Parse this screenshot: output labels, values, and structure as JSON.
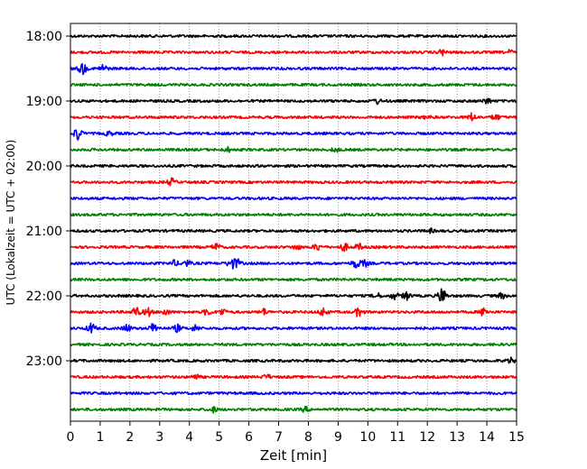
{
  "chart_data": {
    "type": "line",
    "title": "",
    "xlabel": "Zeit  [min]",
    "ylabel": "UTC (Lokalzeit = UTC + 02:00)",
    "xlim": [
      0,
      15
    ],
    "x_ticks": [
      0,
      1,
      2,
      3,
      4,
      5,
      6,
      7,
      8,
      9,
      10,
      11,
      12,
      13,
      14,
      15
    ],
    "grid": "vertical dotted",
    "start_time": "18:00",
    "end_time": "23:45",
    "trace_interval_min": 15,
    "hour_labels": [
      "18:00",
      "19:00",
      "20:00",
      "21:00",
      "22:00",
      "23:00"
    ],
    "trace_colors": [
      "#000000",
      "#ff0000",
      "#0000ff",
      "#008000"
    ],
    "traces": [
      {
        "time": "18:00",
        "color": "#000000",
        "bursts": []
      },
      {
        "time": "18:15",
        "color": "#ff0000",
        "bursts": [
          [
            12.5,
            0.35
          ],
          [
            14.8,
            0.25
          ]
        ]
      },
      {
        "time": "18:30",
        "color": "#0000ff",
        "bursts": [
          [
            0.4,
            0.7
          ],
          [
            1.1,
            0.45
          ]
        ]
      },
      {
        "time": "18:45",
        "color": "#008000",
        "bursts": []
      },
      {
        "time": "19:00",
        "color": "#000000",
        "bursts": [
          [
            10.3,
            0.3
          ],
          [
            14.0,
            0.35
          ]
        ]
      },
      {
        "time": "19:15",
        "color": "#ff0000",
        "bursts": [
          [
            12.0,
            0.2
          ],
          [
            13.5,
            0.45
          ],
          [
            14.3,
            0.35
          ]
        ]
      },
      {
        "time": "19:30",
        "color": "#0000ff",
        "bursts": [
          [
            0.25,
            0.8
          ],
          [
            1.3,
            0.25
          ]
        ]
      },
      {
        "time": "19:45",
        "color": "#008000",
        "bursts": [
          [
            5.3,
            0.25
          ],
          [
            8.9,
            0.25
          ]
        ]
      },
      {
        "time": "20:00",
        "color": "#000000",
        "bursts": []
      },
      {
        "time": "20:15",
        "color": "#ff0000",
        "bursts": [
          [
            3.4,
            0.4
          ]
        ]
      },
      {
        "time": "20:30",
        "color": "#0000ff",
        "bursts": []
      },
      {
        "time": "20:45",
        "color": "#008000",
        "bursts": []
      },
      {
        "time": "21:00",
        "color": "#000000",
        "bursts": [
          [
            12.1,
            0.2
          ]
        ]
      },
      {
        "time": "21:15",
        "color": "#ff0000",
        "bursts": [
          [
            4.9,
            0.45
          ],
          [
            7.6,
            0.3
          ],
          [
            8.3,
            0.4
          ],
          [
            9.2,
            0.45
          ],
          [
            9.7,
            0.35
          ]
        ]
      },
      {
        "time": "21:30",
        "color": "#0000ff",
        "bursts": [
          [
            3.5,
            0.3
          ],
          [
            3.9,
            0.35
          ],
          [
            5.4,
            0.55
          ],
          [
            5.6,
            0.45
          ],
          [
            9.6,
            0.55
          ],
          [
            9.9,
            0.35
          ]
        ]
      },
      {
        "time": "21:45",
        "color": "#008000",
        "bursts": []
      },
      {
        "time": "22:00",
        "color": "#000000",
        "bursts": [
          [
            10.3,
            0.3
          ],
          [
            10.9,
            0.4
          ],
          [
            11.3,
            0.45
          ],
          [
            12.5,
            1.0
          ],
          [
            14.5,
            0.3
          ]
        ]
      },
      {
        "time": "22:15",
        "color": "#ff0000",
        "bursts": [
          [
            2.2,
            0.6
          ],
          [
            2.6,
            0.5
          ],
          [
            3.2,
            0.35
          ],
          [
            4.6,
            0.35
          ],
          [
            5.1,
            0.4
          ],
          [
            6.5,
            0.35
          ],
          [
            8.5,
            0.5
          ],
          [
            9.7,
            0.55
          ],
          [
            13.9,
            0.5
          ]
        ]
      },
      {
        "time": "22:30",
        "color": "#0000ff",
        "bursts": [
          [
            0.7,
            0.6
          ],
          [
            1.9,
            0.45
          ],
          [
            2.8,
            0.6
          ],
          [
            3.6,
            0.4
          ],
          [
            4.2,
            0.35
          ]
        ]
      },
      {
        "time": "22:45",
        "color": "#008000",
        "bursts": []
      },
      {
        "time": "23:00",
        "color": "#000000",
        "bursts": [
          [
            14.8,
            0.3
          ]
        ]
      },
      {
        "time": "23:15",
        "color": "#ff0000",
        "bursts": [
          [
            4.2,
            0.3
          ],
          [
            6.6,
            0.25
          ]
        ]
      },
      {
        "time": "23:30",
        "color": "#0000ff",
        "bursts": []
      },
      {
        "time": "23:45",
        "color": "#008000",
        "bursts": [
          [
            4.8,
            0.3
          ],
          [
            7.9,
            0.25
          ]
        ]
      }
    ]
  }
}
